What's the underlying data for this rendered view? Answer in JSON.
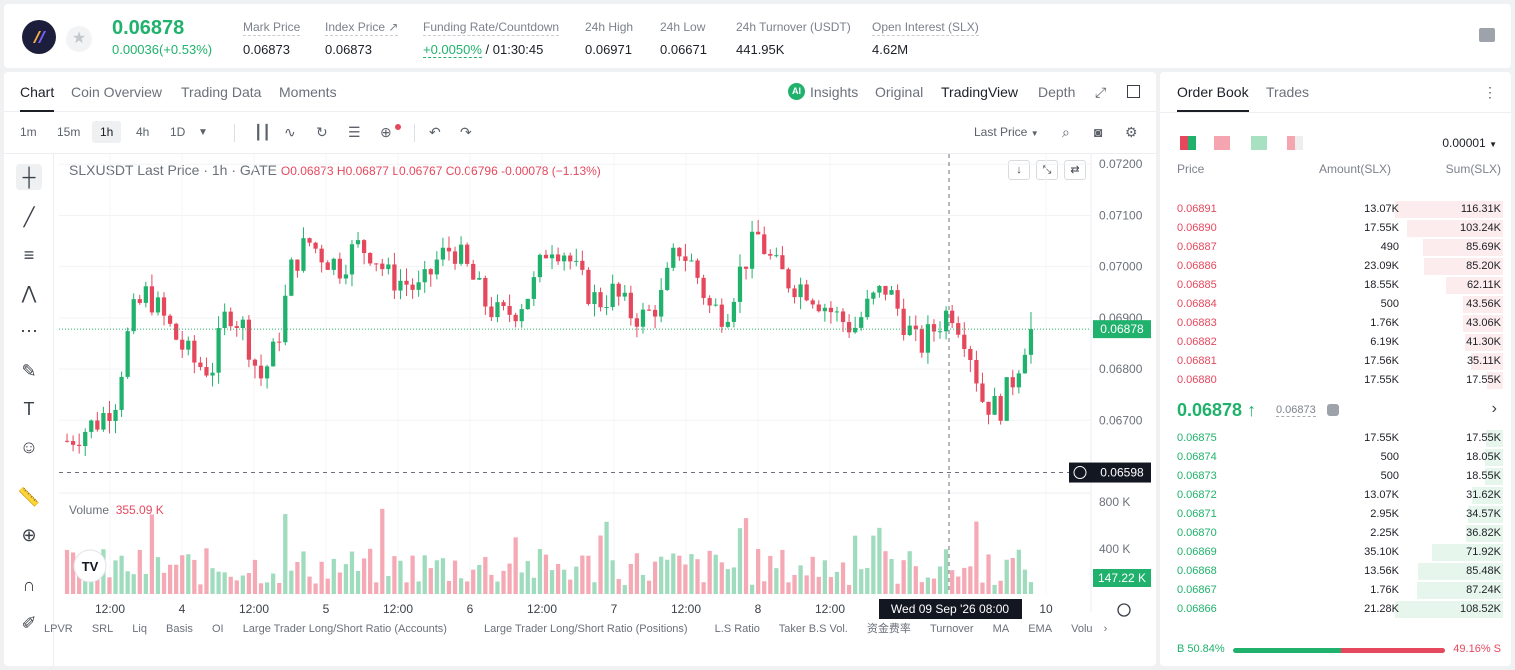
{
  "header": {
    "price": "0.06878",
    "change": "0.00036(+0.53%)",
    "stats": [
      {
        "label": "Mark Price",
        "value": "0.06873"
      },
      {
        "label": "Index Price ↗",
        "value": "0.06873"
      },
      {
        "label": "Funding Rate/Countdown",
        "value_green": "+0.0050%",
        "value": " / 01:30:45"
      },
      {
        "label": "24h High",
        "value": "0.06971"
      },
      {
        "label": "24h Low",
        "value": "0.06671"
      },
      {
        "label": "24h Turnover (USDT)",
        "value": "441.95K"
      },
      {
        "label": "Open Interest (SLX)",
        "value": "4.62M"
      }
    ]
  },
  "chart_tabs": [
    "Chart",
    "Coin Overview",
    "Trading Data",
    "Moments"
  ],
  "view_tabs": [
    "Insights",
    "Original",
    "TradingView",
    "Depth"
  ],
  "timeframes": [
    "1m",
    "15m",
    "1h",
    "4h",
    "1D"
  ],
  "price_type": "Last Price",
  "legend": {
    "title": "SLXUSDT Last Price · 1h · GATE",
    "ohlc": "O0.06873 H0.06877 L0.06767 C0.06796 -0.00078 (−1.13%)",
    "volume_label": "Volume",
    "volume_value": "355.09 K"
  },
  "chart_data": {
    "type": "candlestick",
    "ylim": [
      0.0656,
      0.0722
    ],
    "y_ticks": [
      "0.07200",
      "0.07100",
      "0.07000",
      "0.06900",
      "0.06800",
      "0.06700"
    ],
    "last_price_label": "0.06878",
    "crosshair_label": "0.06598",
    "volume_ticks": [
      "800 K",
      "400 K"
    ],
    "volume_last": "147.22 K",
    "x_ticks": [
      "12:00",
      "4",
      "12:00",
      "5",
      "12:00",
      "6",
      "12:00",
      "7",
      "12:00",
      "8",
      "12:00",
      "10"
    ],
    "crosshair_time": "Wed 09 Sep '26   08:00"
  },
  "bottom_indicators": [
    "LPVR",
    "SRL",
    "Liq",
    "Basis",
    "OI",
    "Large Trader Long/Short Ratio (Accounts)",
    "Large Trader Long/Short Ratio (Positions)",
    "L.S Ratio",
    "Taker B.S Vol.",
    "资金费率",
    "Turnover",
    "MA",
    "EMA",
    "Volu"
  ],
  "orderbook": {
    "tabs": [
      "Order Book",
      "Trades"
    ],
    "precision": "0.00001",
    "headers": [
      "Price",
      "Amount(SLX)",
      "Sum(SLX)"
    ],
    "asks": [
      {
        "price": "0.06891",
        "amount": "13.07K",
        "sum": "116.31K",
        "depth": 1.0
      },
      {
        "price": "0.06890",
        "amount": "17.55K",
        "sum": "103.24K",
        "depth": 0.89
      },
      {
        "price": "0.06887",
        "amount": "490",
        "sum": "85.69K",
        "depth": 0.74
      },
      {
        "price": "0.06886",
        "amount": "23.09K",
        "sum": "85.20K",
        "depth": 0.73
      },
      {
        "price": "0.06885",
        "amount": "18.55K",
        "sum": "62.11K",
        "depth": 0.53
      },
      {
        "price": "0.06884",
        "amount": "500",
        "sum": "43.56K",
        "depth": 0.37
      },
      {
        "price": "0.06883",
        "amount": "1.76K",
        "sum": "43.06K",
        "depth": 0.37
      },
      {
        "price": "0.06882",
        "amount": "6.19K",
        "sum": "41.30K",
        "depth": 0.35
      },
      {
        "price": "0.06881",
        "amount": "17.56K",
        "sum": "35.11K",
        "depth": 0.3
      },
      {
        "price": "0.06880",
        "amount": "17.55K",
        "sum": "17.55K",
        "depth": 0.15
      }
    ],
    "mid_price": "0.06878 ↑",
    "mark_price": "0.06873",
    "bids": [
      {
        "price": "0.06875",
        "amount": "17.55K",
        "sum": "17.55K",
        "depth": 0.16
      },
      {
        "price": "0.06874",
        "amount": "500",
        "sum": "18.05K",
        "depth": 0.17
      },
      {
        "price": "0.06873",
        "amount": "500",
        "sum": "18.55K",
        "depth": 0.17
      },
      {
        "price": "0.06872",
        "amount": "13.07K",
        "sum": "31.62K",
        "depth": 0.29
      },
      {
        "price": "0.06871",
        "amount": "2.95K",
        "sum": "34.57K",
        "depth": 0.32
      },
      {
        "price": "0.06870",
        "amount": "2.25K",
        "sum": "36.82K",
        "depth": 0.34
      },
      {
        "price": "0.06869",
        "amount": "35.10K",
        "sum": "71.92K",
        "depth": 0.66
      },
      {
        "price": "0.06868",
        "amount": "13.56K",
        "sum": "85.48K",
        "depth": 0.79
      },
      {
        "price": "0.06867",
        "amount": "1.76K",
        "sum": "87.24K",
        "depth": 0.8
      },
      {
        "price": "0.06866",
        "amount": "21.28K",
        "sum": "108.52K",
        "depth": 1.0
      }
    ],
    "buy_ratio": "B 50.84%",
    "sell_ratio": "49.16% S",
    "buy_fraction": 0.5084
  },
  "colors": {
    "up": "#20b26c",
    "down": "#e5485d"
  }
}
